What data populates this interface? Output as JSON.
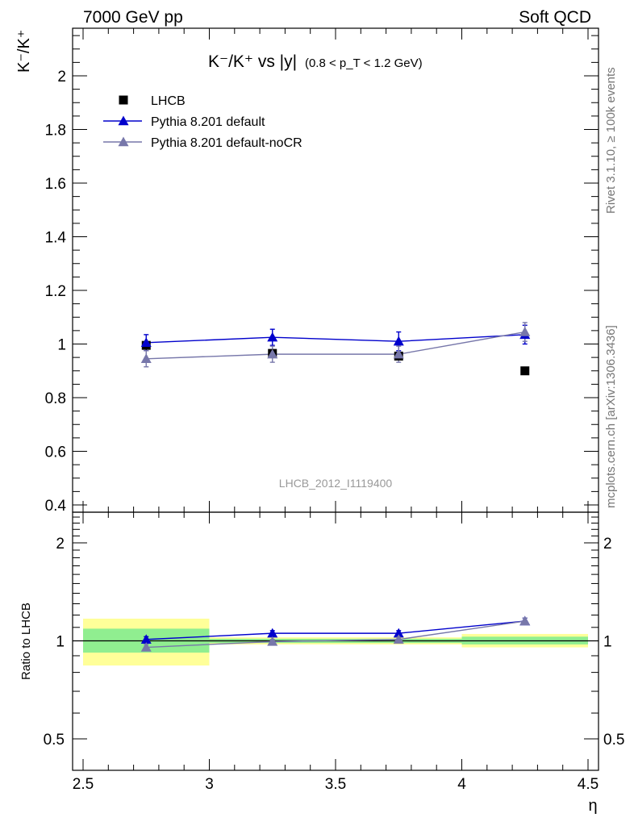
{
  "header": {
    "left": "7000 GeV pp",
    "right": "Soft QCD"
  },
  "side_labels": {
    "rivet": "Rivet 3.1.10, ≥ 100k events",
    "mcplots": "mcplots.cern.ch [arXiv:1306.3436]"
  },
  "watermark": "LHCB_2012_I1119400",
  "chart_data": [
    {
      "type": "scatter",
      "panel": "main",
      "title": "K⁻/K⁺ vs |y|",
      "subtitle": "(0.8 < p_T < 1.2 GeV)",
      "ylabel": "K⁻/K⁺",
      "xlim": [
        2.5,
        4.5
      ],
      "ylim": [
        0.38,
        2.18
      ],
      "y_ticks": [
        "0.4",
        "0.6",
        "0.8",
        "1",
        "1.2",
        "1.4",
        "1.6",
        "1.8",
        "2"
      ],
      "legend_position": "top-left",
      "series": [
        {
          "name": "LHCB",
          "color": "#000000",
          "marker": "square",
          "x": [
            2.75,
            3.25,
            3.75,
            4.25
          ],
          "y": [
            0.995,
            0.965,
            0.955,
            0.9
          ]
        },
        {
          "name": "Pythia 8.201 default",
          "color": "#0000cc",
          "marker": "triangle",
          "x": [
            2.75,
            3.25,
            3.75,
            4.25
          ],
          "y": [
            1.005,
            1.025,
            1.01,
            1.035
          ],
          "err": [
            0.03,
            0.03,
            0.035,
            0.035
          ]
        },
        {
          "name": "Pythia 8.201 default-noCR",
          "color": "#7777aa",
          "marker": "triangle",
          "x": [
            2.75,
            3.25,
            3.75,
            4.25
          ],
          "y": [
            0.945,
            0.962,
            0.962,
            1.045
          ],
          "err": [
            0.03,
            0.03,
            0.03,
            0.035
          ]
        }
      ]
    },
    {
      "type": "scatter",
      "panel": "ratio",
      "ylabel": "Ratio to LHCB",
      "xlabel": "η",
      "xlim": [
        2.5,
        4.5
      ],
      "log_y": true,
      "ylim": [
        0.4,
        2.5
      ],
      "y_ticks": [
        "0.5",
        "1",
        "2"
      ],
      "x_ticks": [
        "2.5",
        "3",
        "3.5",
        "4",
        "4.5"
      ],
      "bands": [
        {
          "x": [
            2.5,
            3.0
          ],
          "inner": [
            0.92,
            1.09
          ],
          "outer": [
            0.84,
            1.17
          ]
        },
        {
          "x": [
            3.0,
            4.0
          ],
          "inner": [
            0.985,
            1.015
          ],
          "outer": [
            0.975,
            1.025
          ]
        },
        {
          "x": [
            4.0,
            4.5
          ],
          "inner": [
            0.975,
            1.03
          ],
          "outer": [
            0.955,
            1.05
          ]
        }
      ],
      "band_colors": {
        "inner": "#90ee90",
        "outer": "#ffff99"
      },
      "series": [
        {
          "name": "Pythia 8.201 default",
          "color": "#0000cc",
          "x": [
            2.75,
            3.25,
            3.75,
            4.25
          ],
          "y": [
            1.01,
            1.055,
            1.055,
            1.15
          ],
          "err": [
            0.02,
            0.02,
            0.02,
            0.025
          ]
        },
        {
          "name": "Pythia 8.201 default-noCR",
          "color": "#7777aa",
          "x": [
            2.75,
            3.25,
            3.75,
            4.25
          ],
          "y": [
            0.955,
            0.995,
            1.01,
            1.15
          ],
          "err": [
            0.02,
            0.015,
            0.015,
            0.025
          ]
        }
      ]
    }
  ]
}
